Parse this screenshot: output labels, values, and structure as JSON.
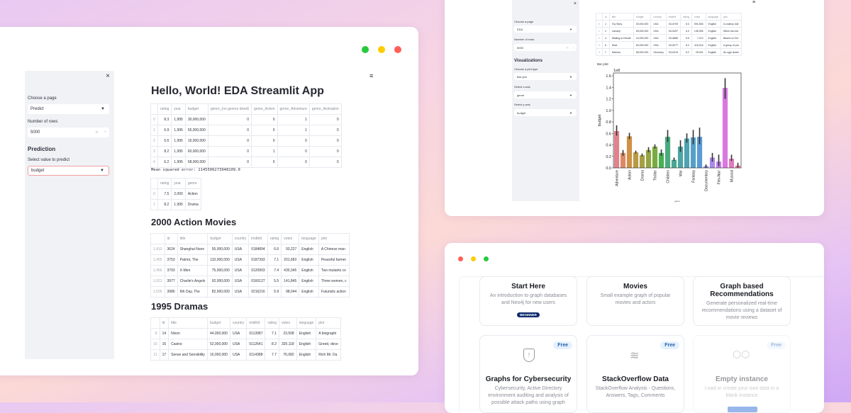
{
  "left_app": {
    "sidebar": {
      "close": "×",
      "page_label": "Choose a page",
      "page_value": "Predict",
      "rows_label": "Number of rows",
      "rows_value": "5000",
      "minus": "−",
      "plus": "+",
      "section": "Prediction",
      "predict_label": "Select value to predict",
      "predict_value": "budget"
    },
    "menu": "≡",
    "title": "Hello, World! EDA Streamlit App",
    "table1": {
      "headers": [
        "",
        "rating",
        "year",
        "budget",
        "genre_(no genres listed)",
        "genre_Action",
        "genre_Adventure",
        "genre_Animation"
      ],
      "rows": [
        [
          "0",
          "8.3",
          "1,995",
          "30,000,000",
          "0",
          "0",
          "1",
          "0"
        ],
        [
          "1",
          "6.9",
          "1,995",
          "65,000,000",
          "0",
          "0",
          "1",
          "0"
        ],
        [
          "2",
          "5.6",
          "1,995",
          "16,000,000",
          "0",
          "0",
          "0",
          "0"
        ],
        [
          "3",
          "8.2",
          "1,995",
          "60,000,000",
          "0",
          "1",
          "0",
          "0"
        ],
        [
          "4",
          "6.2",
          "1,995",
          "58,000,000",
          "0",
          "0",
          "0",
          "0"
        ]
      ]
    },
    "mse": "Mean squared error: 1145506273948109.0",
    "table2": {
      "headers": [
        "",
        "rating",
        "year",
        "genre"
      ],
      "rows": [
        [
          "0",
          "7.5",
          "2,000",
          "Action"
        ],
        [
          "1",
          "8.2",
          "1,995",
          "Drama"
        ]
      ]
    },
    "h_action": "2000 Action Movies",
    "table3": {
      "headers": [
        "",
        "id",
        "title",
        "budget",
        "country",
        "imdbId",
        "rating",
        "votes",
        "language",
        "plot"
      ],
      "rows": [
        [
          "1,410",
          "3624",
          "Shanghai Noon",
          "55,000,000",
          "USA",
          "0184894",
          "6.6",
          "93,227",
          "English",
          "A Chinese man"
        ],
        [
          "1,455",
          "3753",
          "Patriot, The",
          "110,000,000",
          "USA",
          "0187393",
          "7.1",
          "201,683",
          "English",
          "Peaceful farmer"
        ],
        [
          "1,466",
          "3793",
          "X-Men",
          "75,000,000",
          "USA",
          "0120903",
          "7.4",
          "430,345",
          "English",
          "Two mutants co"
        ],
        [
          "1,521",
          "3977",
          "Charlie's Angels",
          "92,000,000",
          "USA",
          "0160127",
          "5.5",
          "141,845",
          "English",
          "Three women, c"
        ],
        [
          "1,526",
          "3986",
          "6th Day, The",
          "82,000,000",
          "USA",
          "0216216",
          "5.9",
          "98,044",
          "English",
          "Futuristic action"
        ]
      ]
    },
    "h_drama": "1995 Dramas",
    "table4": {
      "headers": [
        "",
        "id",
        "title",
        "budget",
        "country",
        "imdbId",
        "rating",
        "votes",
        "language",
        "plot"
      ],
      "rows": [
        [
          "8",
          "14",
          "Nixon",
          "44,000,000",
          "USA",
          "0113987",
          "7.1",
          "23,508",
          "English",
          "A biographi"
        ],
        [
          "10",
          "16",
          "Casino",
          "52,000,000",
          "USA",
          "0112641",
          "8.2",
          "320,118",
          "English",
          "Greed, dece"
        ],
        [
          "11",
          "17",
          "Sense and Sensibility",
          "16,000,000",
          "USA",
          "0114388",
          "7.7",
          "76,082",
          "English",
          "Rich Mr. Da"
        ]
      ]
    }
  },
  "right_app": {
    "sidebar": {
      "close": "×",
      "page_label": "Choose a page",
      "page_value": "EDA",
      "rows_label": "Number of rows",
      "rows_value": "5000",
      "minus": "−",
      "plus": "+",
      "section": "Visualizations",
      "plot_label": "Choose a plot type",
      "plot_value": "Bar plot",
      "x_label": "Select x-axis",
      "x_value": "genre",
      "y_label": "Select y-axis",
      "y_value": "budget"
    },
    "menu": "≡",
    "table": {
      "headers": [
        "",
        "id",
        "title",
        "budget",
        "country",
        "imdbId",
        "rating",
        "votes",
        "language",
        "plot"
      ],
      "rows": [
        [
          "0",
          "1",
          "Toy Story",
          "30,000,000",
          "USA",
          "0114709",
          "8.3",
          "591,836",
          "English",
          "A cowboy doll"
        ],
        [
          "1",
          "2",
          "Jumanji",
          "65,000,000",
          "USA",
          "0113497",
          "6.9",
          "198,355",
          "English",
          "When two kid"
        ],
        [
          "2",
          "4",
          "Waiting to Exhale",
          "16,000,000",
          "USA",
          "0114885",
          "5.6",
          "7,210",
          "English",
          "Based on Terr"
        ],
        [
          "3",
          "6",
          "Heat",
          "60,000,000",
          "USA",
          "0113277",
          "8.2",
          "416,316",
          "English",
          "A group of pro"
        ],
        [
          "4",
          "7",
          "Sabrina",
          "58,000,000",
          "Germany",
          "0114319",
          "6.2",
          "29,091",
          "English",
          "An ugly duckli"
        ]
      ]
    },
    "chart_caption": "Bar plot:"
  },
  "chart_data": {
    "type": "bar",
    "ylabel": "budget",
    "xlabel": "genre",
    "y_offset_label": "1e8",
    "ylim": [
      0,
      1.65
    ],
    "yticks": [
      "0.0",
      "0.2",
      "0.4",
      "0.6",
      "0.8",
      "1.0",
      "1.2",
      "1.4",
      "1.6"
    ],
    "categories": [
      "Adventure",
      "",
      "Action",
      "",
      "Drama",
      "",
      "Thriller",
      "",
      "Children",
      "",
      "War",
      "",
      "Fantasy",
      "",
      "Documentary",
      "",
      "Film-Noir",
      "",
      "Musical",
      ""
    ],
    "values": [
      0.64,
      0.26,
      0.55,
      0.27,
      0.22,
      0.31,
      0.37,
      0.26,
      0.54,
      0.14,
      0.37,
      0.51,
      0.53,
      0.54,
      0.03,
      0.18,
      0.11,
      1.39,
      0.16,
      0.04
    ],
    "err_low": [
      0.56,
      0.21,
      0.5,
      0.25,
      0.2,
      0.27,
      0.34,
      0.21,
      0.45,
      0.12,
      0.28,
      0.44,
      0.41,
      0.41,
      0.0,
      0.11,
      0.03,
      1.2,
      0.12,
      0.01
    ],
    "err_high": [
      0.74,
      0.31,
      0.61,
      0.3,
      0.25,
      0.36,
      0.41,
      0.32,
      0.66,
      0.18,
      0.48,
      0.6,
      0.66,
      0.7,
      0.06,
      0.26,
      0.23,
      1.56,
      0.23,
      0.09
    ],
    "colors": [
      "#e1828c",
      "#db8a67",
      "#cf9146",
      "#b79a45",
      "#a7a042",
      "#93a543",
      "#78ab42",
      "#47b04f",
      "#49ab7f",
      "#4aa793",
      "#4ca5a3",
      "#4fa2b1",
      "#55a0c4",
      "#5a9bd6",
      "#8a90e6",
      "#a98aeb",
      "#c382ec",
      "#d979e0",
      "#e17bbb",
      "#e37ea1"
    ]
  },
  "neo4j": {
    "cards": [
      {
        "title": "Start Here",
        "desc": "An introduction to graph databases and Neo4j for new users",
        "badge": "BEGINNER"
      },
      {
        "title": "Movies",
        "desc": "Small example graph of popular movies and actors"
      },
      {
        "title": "Graph based Recommendations",
        "desc": "Generate personalized real-time recommendations using a dataset of movie reviews"
      },
      {
        "title": "Graphs for Cybersecurity",
        "desc": "Cybersecurity, Active Directory environment auditing and analysis of possible attack paths using graph",
        "tag": "Free"
      },
      {
        "title": "StackOverflow Data",
        "desc": "StackOverflow Analysis - Questions, Answers, Tags, Comments",
        "tag": "Free"
      },
      {
        "title": "Empty instance",
        "desc": "Load or create your own data in a blank instance",
        "tag": "Free"
      }
    ]
  }
}
